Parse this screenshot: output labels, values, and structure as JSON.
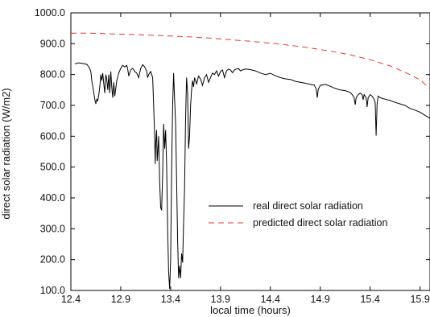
{
  "chart_data": {
    "type": "line",
    "xlabel": "local time (hours)",
    "ylabel": "direct solar radiation (W/m2)",
    "xlim": [
      12.4,
      16.0
    ],
    "ylim": [
      100.0,
      1000.0
    ],
    "x_ticks": [
      "12.4",
      "12.9",
      "13.4",
      "13.9",
      "14.4",
      "14.9",
      "15.4",
      "15.9"
    ],
    "y_ticks": [
      "100.0",
      "200.0",
      "300.0",
      "400.0",
      "500.0",
      "600.0",
      "700.0",
      "800.0",
      "900.0",
      "1000.0"
    ],
    "grid": false,
    "legend_position": "center-right",
    "series": [
      {
        "name": "real direct solar radiation",
        "color": "#000000",
        "style": "solid",
        "points": [
          [
            12.44,
            835
          ],
          [
            12.48,
            838
          ],
          [
            12.52,
            836
          ],
          [
            12.56,
            833
          ],
          [
            12.58,
            825
          ],
          [
            12.6,
            810
          ],
          [
            12.61,
            780
          ],
          [
            12.62,
            760
          ],
          [
            12.63,
            740
          ],
          [
            12.64,
            720
          ],
          [
            12.65,
            705
          ],
          [
            12.66,
            720
          ],
          [
            12.67,
            715
          ],
          [
            12.68,
            735
          ],
          [
            12.69,
            760
          ],
          [
            12.7,
            800
          ],
          [
            12.71,
            780
          ],
          [
            12.72,
            805
          ],
          [
            12.73,
            770
          ],
          [
            12.74,
            740
          ],
          [
            12.75,
            800
          ],
          [
            12.76,
            785
          ],
          [
            12.77,
            750
          ],
          [
            12.78,
            800
          ],
          [
            12.79,
            740
          ],
          [
            12.8,
            810
          ],
          [
            12.81,
            760
          ],
          [
            12.82,
            725
          ],
          [
            12.83,
            775
          ],
          [
            12.84,
            730
          ],
          [
            12.86,
            780
          ],
          [
            12.88,
            805
          ],
          [
            12.9,
            820
          ],
          [
            12.92,
            830
          ],
          [
            12.94,
            825
          ],
          [
            12.96,
            830
          ],
          [
            12.97,
            818
          ],
          [
            12.98,
            795
          ],
          [
            13.0,
            815
          ],
          [
            13.02,
            820
          ],
          [
            13.04,
            810
          ],
          [
            13.06,
            805
          ],
          [
            13.08,
            790
          ],
          [
            13.1,
            820
          ],
          [
            13.12,
            832
          ],
          [
            13.14,
            825
          ],
          [
            13.16,
            810
          ],
          [
            13.17,
            790
          ],
          [
            13.18,
            800
          ],
          [
            13.2,
            810
          ],
          [
            13.22,
            790
          ],
          [
            13.23,
            700
          ],
          [
            13.24,
            600
          ],
          [
            13.245,
            510
          ],
          [
            13.25,
            570
          ],
          [
            13.26,
            620
          ],
          [
            13.265,
            520
          ],
          [
            13.27,
            540
          ],
          [
            13.28,
            600
          ],
          [
            13.29,
            450
          ],
          [
            13.3,
            370
          ],
          [
            13.31,
            360
          ],
          [
            13.32,
            480
          ],
          [
            13.33,
            640
          ],
          [
            13.34,
            560
          ],
          [
            13.35,
            620
          ],
          [
            13.36,
            510
          ],
          [
            13.37,
            300
          ],
          [
            13.38,
            160
          ],
          [
            13.39,
            105
          ],
          [
            13.4,
            200
          ],
          [
            13.41,
            480
          ],
          [
            13.42,
            700
          ],
          [
            13.43,
            805
          ],
          [
            13.44,
            720
          ],
          [
            13.45,
            640
          ],
          [
            13.46,
            460
          ],
          [
            13.47,
            260
          ],
          [
            13.48,
            140
          ],
          [
            13.49,
            180
          ],
          [
            13.5,
            140
          ],
          [
            13.51,
            220
          ],
          [
            13.52,
            190
          ],
          [
            13.53,
            320
          ],
          [
            13.54,
            430
          ],
          [
            13.55,
            660
          ],
          [
            13.56,
            790
          ],
          [
            13.57,
            740
          ],
          [
            13.58,
            560
          ],
          [
            13.59,
            600
          ],
          [
            13.6,
            700
          ],
          [
            13.61,
            750
          ],
          [
            13.62,
            780
          ],
          [
            13.63,
            760
          ],
          [
            13.64,
            790
          ],
          [
            13.66,
            770
          ],
          [
            13.68,
            795
          ],
          [
            13.7,
            785
          ],
          [
            13.72,
            765
          ],
          [
            13.74,
            790
          ],
          [
            13.76,
            800
          ],
          [
            13.78,
            775
          ],
          [
            13.8,
            790
          ],
          [
            13.82,
            805
          ],
          [
            13.84,
            800
          ],
          [
            13.86,
            812
          ],
          [
            13.88,
            795
          ],
          [
            13.9,
            810
          ],
          [
            13.92,
            815
          ],
          [
            13.94,
            790
          ],
          [
            13.96,
            812
          ],
          [
            13.98,
            818
          ],
          [
            14.0,
            815
          ],
          [
            14.02,
            806
          ],
          [
            14.04,
            815
          ],
          [
            14.06,
            818
          ],
          [
            14.08,
            820
          ],
          [
            14.1,
            812
          ],
          [
            14.12,
            815
          ],
          [
            14.15,
            818
          ],
          [
            14.2,
            816
          ],
          [
            14.25,
            812
          ],
          [
            14.3,
            805
          ],
          [
            14.35,
            800
          ],
          [
            14.4,
            804
          ],
          [
            14.45,
            796
          ],
          [
            14.5,
            790
          ],
          [
            14.55,
            786
          ],
          [
            14.6,
            784
          ],
          [
            14.65,
            778
          ],
          [
            14.7,
            775
          ],
          [
            14.75,
            772
          ],
          [
            14.8,
            768
          ],
          [
            14.84,
            766
          ],
          [
            14.86,
            752
          ],
          [
            14.87,
            725
          ],
          [
            14.88,
            752
          ],
          [
            14.9,
            765
          ],
          [
            14.95,
            768
          ],
          [
            15.0,
            762
          ],
          [
            15.05,
            755
          ],
          [
            15.1,
            750
          ],
          [
            15.15,
            748
          ],
          [
            15.2,
            742
          ],
          [
            15.22,
            735
          ],
          [
            15.24,
            725
          ],
          [
            15.25,
            702
          ],
          [
            15.26,
            725
          ],
          [
            15.28,
            735
          ],
          [
            15.3,
            740
          ],
          [
            15.32,
            735
          ],
          [
            15.33,
            718
          ],
          [
            15.34,
            735
          ],
          [
            15.36,
            725
          ],
          [
            15.37,
            695
          ],
          [
            15.38,
            725
          ],
          [
            15.4,
            735
          ],
          [
            15.42,
            730
          ],
          [
            15.44,
            720
          ],
          [
            15.45,
            710
          ],
          [
            15.46,
            602
          ],
          [
            15.47,
            705
          ],
          [
            15.48,
            730
          ],
          [
            15.5,
            725
          ],
          [
            15.55,
            720
          ],
          [
            15.6,
            716
          ],
          [
            15.65,
            710
          ],
          [
            15.7,
            705
          ],
          [
            15.75,
            700
          ],
          [
            15.8,
            690
          ],
          [
            15.85,
            685
          ],
          [
            15.9,
            678
          ],
          [
            15.95,
            668
          ],
          [
            16.0,
            658
          ]
        ]
      },
      {
        "name": "predicted direct solar radiation",
        "color": "#e8372a",
        "style": "dashed",
        "points": [
          [
            12.4,
            934
          ],
          [
            12.6,
            934
          ],
          [
            12.8,
            932
          ],
          [
            13.0,
            930
          ],
          [
            13.2,
            928
          ],
          [
            13.4,
            925
          ],
          [
            13.6,
            922
          ],
          [
            13.8,
            918
          ],
          [
            14.0,
            913
          ],
          [
            14.2,
            908
          ],
          [
            14.4,
            902
          ],
          [
            14.6,
            895
          ],
          [
            14.8,
            886
          ],
          [
            15.0,
            876
          ],
          [
            15.2,
            864
          ],
          [
            15.4,
            848
          ],
          [
            15.6,
            828
          ],
          [
            15.8,
            800
          ],
          [
            15.9,
            783
          ],
          [
            16.0,
            754
          ]
        ]
      }
    ]
  }
}
